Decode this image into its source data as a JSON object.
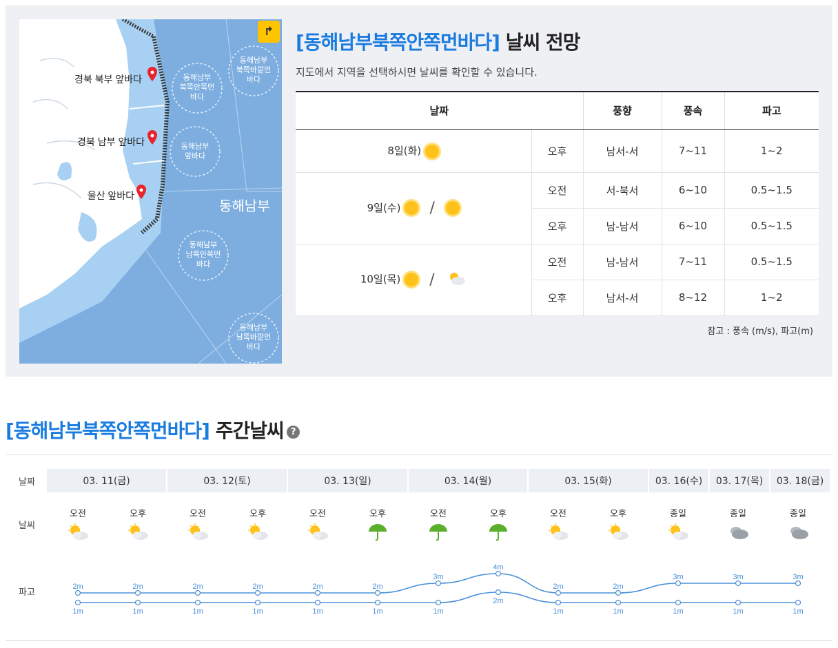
{
  "forecast": {
    "area": "[동해남부북쪽안쪽먼바다]",
    "title_suffix": "날씨 전망",
    "subtitle": "지도에서 지역을 선택하시면 날씨를 확인할 수 있습니다.",
    "headers": [
      "날짜",
      "풍향",
      "풍속",
      "파고"
    ],
    "rows": [
      {
        "date": "8일(화)",
        "time": "오후",
        "dir": "남서-서",
        "speed": "7~11",
        "wave": "1~2"
      },
      {
        "date": "9일(수)",
        "time": "오전",
        "dir": "서-북서",
        "speed": "6~10",
        "wave": "0.5~1.5"
      },
      {
        "time": "오후",
        "dir": "남-남서",
        "speed": "6~10",
        "wave": "0.5~1.5"
      },
      {
        "date": "10일(목)",
        "time": "오전",
        "dir": "남-남서",
        "speed": "7~11",
        "wave": "0.5~1.5"
      },
      {
        "time": "오후",
        "dir": "남서-서",
        "speed": "8~12",
        "wave": "1~2"
      }
    ],
    "reference": "참고 : 풍속 (m/s), 파고(m)"
  },
  "map": {
    "labels": [
      "경북 북부 앞바다",
      "경북 남부 앞바다",
      "울산 앞바다",
      "동해남부"
    ],
    "zones": [
      [
        "동해남부",
        "북쪽바깥먼",
        "바다"
      ],
      [
        "동해남부",
        "북쪽안쪽먼",
        "바다"
      ],
      [
        "동해남부",
        "앞바다"
      ],
      [
        "동해남부",
        "남쪽안쪽먼",
        "바다"
      ],
      [
        "동해남부",
        "남쪽바깥먼",
        "바다"
      ]
    ]
  },
  "weekly": {
    "area": "[동해남부북쪽안쪽먼바다]",
    "title_suffix": "주간날씨",
    "help_icon": "?",
    "row_labels": {
      "date": "날짜",
      "weather": "날씨",
      "wave": "파고"
    },
    "dates": [
      "03. 11(금)",
      "03. 12(토)",
      "03. 13(일)",
      "03. 14(월)",
      "03. 15(화)",
      "03. 16(수)",
      "03. 17(목)",
      "03. 18(금)"
    ],
    "slots": [
      {
        "label": "오전",
        "icon": "partly-cloudy-icon"
      },
      {
        "label": "오후",
        "icon": "partly-cloudy-icon"
      },
      {
        "label": "오전",
        "icon": "partly-cloudy-icon"
      },
      {
        "label": "오후",
        "icon": "partly-cloudy-icon"
      },
      {
        "label": "오전",
        "icon": "partly-cloudy-icon"
      },
      {
        "label": "오후",
        "icon": "umbrella-icon"
      },
      {
        "label": "오전",
        "icon": "umbrella-icon"
      },
      {
        "label": "오후",
        "icon": "umbrella-icon"
      },
      {
        "label": "오전",
        "icon": "partly-cloudy-icon"
      },
      {
        "label": "오후",
        "icon": "partly-cloudy-icon"
      },
      {
        "label": "종일",
        "icon": "partly-cloudy-icon"
      },
      {
        "label": "종일",
        "icon": "cloudy-icon"
      },
      {
        "label": "종일",
        "icon": "cloudy-icon"
      }
    ],
    "wave_high": [
      "2m",
      "2m",
      "2m",
      "2m",
      "2m",
      "2m",
      "3m",
      "4m",
      "2m",
      "2m",
      "3m",
      "3m",
      "3m"
    ],
    "wave_low": [
      "1m",
      "1m",
      "1m",
      "1m",
      "1m",
      "1m",
      "1m",
      "2m",
      "1m",
      "1m",
      "1m",
      "1m",
      "1m"
    ],
    "wave_high_values": [
      2,
      2,
      2,
      2,
      2,
      2,
      3,
      4,
      2,
      2,
      3,
      3,
      3
    ],
    "wave_low_values": [
      1,
      1,
      1,
      1,
      1,
      1,
      1,
      2,
      1,
      1,
      1,
      1,
      1
    ],
    "line_color": "#4a90d9"
  }
}
